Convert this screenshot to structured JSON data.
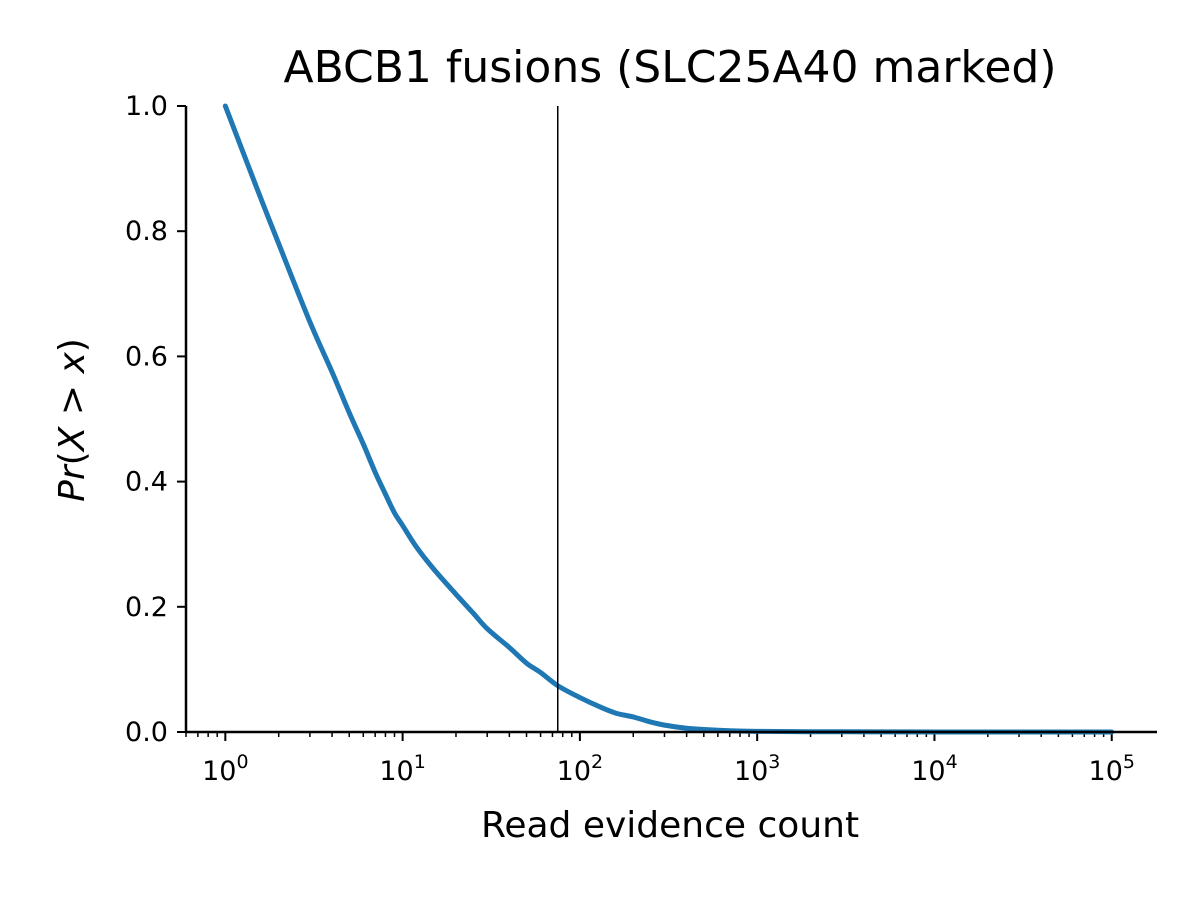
{
  "chart_data": {
    "type": "line",
    "title": "ABCB1 fusions (SLC25A40 marked)",
    "xlabel": "Read evidence count",
    "ylabel": "Pr(X > x)",
    "x_scale": "log",
    "xlim": [
      0.6,
      180000
    ],
    "ylim": [
      0.0,
      1.0
    ],
    "grid": false,
    "legend": "none",
    "x_ticks": [
      {
        "value": 1,
        "base": "10",
        "exp": "0"
      },
      {
        "value": 10,
        "base": "10",
        "exp": "1"
      },
      {
        "value": 100,
        "base": "10",
        "exp": "2"
      },
      {
        "value": 1000,
        "base": "10",
        "exp": "3"
      },
      {
        "value": 10000,
        "base": "10",
        "exp": "4"
      },
      {
        "value": 100000,
        "base": "10",
        "exp": "5"
      }
    ],
    "y_ticks": [
      {
        "value": 0.0,
        "label": "0.0"
      },
      {
        "value": 0.2,
        "label": "0.2"
      },
      {
        "value": 0.4,
        "label": "0.4"
      },
      {
        "value": 0.6,
        "label": "0.6"
      },
      {
        "value": 0.8,
        "label": "0.8"
      },
      {
        "value": 1.0,
        "label": "1.0"
      }
    ],
    "marker_line": {
      "x": 75,
      "color": "#000000"
    },
    "series": [
      {
        "color": "#1f77b4",
        "x": [
          1,
          1.5,
          2,
          3,
          4,
          5,
          6,
          7,
          8,
          9,
          10,
          12,
          15,
          20,
          25,
          30,
          40,
          50,
          60,
          75,
          100,
          130,
          160,
          200,
          250,
          300,
          400,
          500,
          700,
          1000,
          2000,
          5000,
          10000,
          30000,
          100000
        ],
        "y": [
          1.0,
          0.87,
          0.78,
          0.655,
          0.575,
          0.51,
          0.46,
          0.415,
          0.38,
          0.35,
          0.33,
          0.295,
          0.26,
          0.22,
          0.19,
          0.165,
          0.135,
          0.11,
          0.095,
          0.074,
          0.055,
          0.04,
          0.03,
          0.024,
          0.016,
          0.011,
          0.006,
          0.004,
          0.002,
          0.001,
          0.0005,
          0.0002,
          0.0001,
          5e-05,
          0.0
        ]
      }
    ]
  }
}
